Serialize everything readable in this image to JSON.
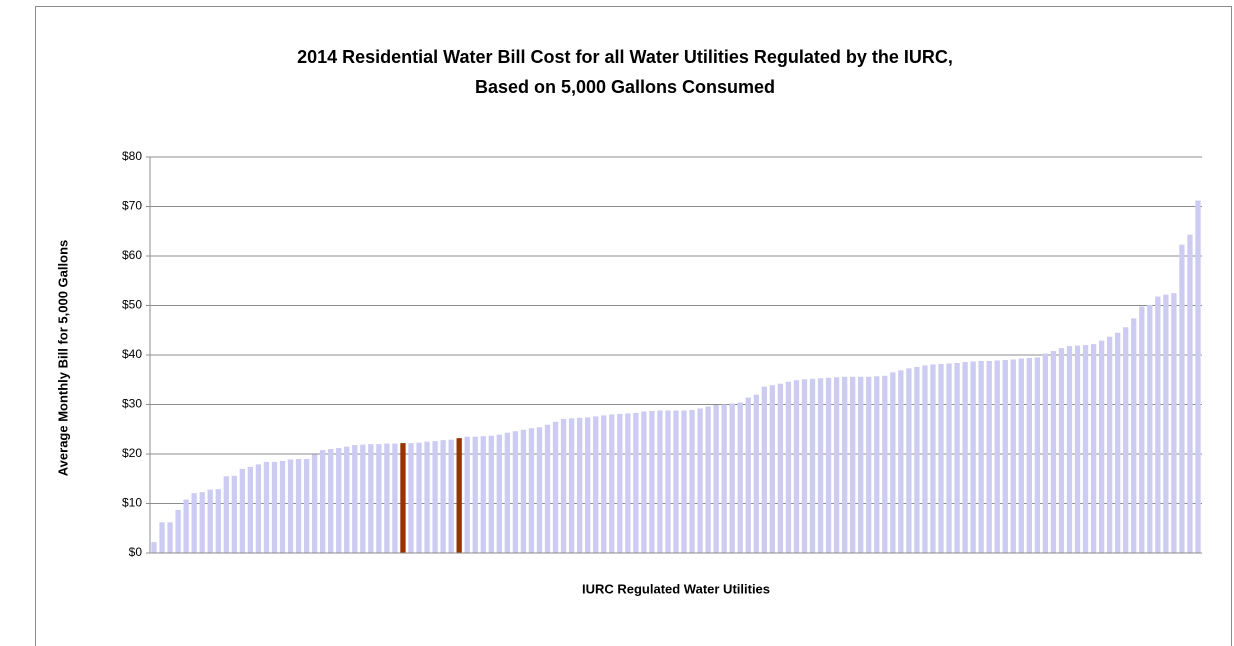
{
  "chart_data": {
    "type": "bar",
    "title": [
      "2014 Residential Water Bill Cost for all Water Utilities Regulated by the IURC,",
      "Based on 5,000 Gallons Consumed"
    ],
    "x_label": "IURC Regulated Water Utilities",
    "y_label": "Average Monthly Bill for 5,000 Gallons",
    "categories": [
      null,
      null,
      null,
      null,
      null,
      null,
      null,
      null,
      null,
      null,
      null,
      null,
      null,
      null,
      null,
      null,
      null,
      null,
      null,
      null,
      null,
      null,
      null,
      null,
      null,
      null,
      null,
      null,
      null,
      null,
      null,
      null,
      null,
      null,
      null,
      null,
      null,
      null,
      null,
      null,
      null,
      null,
      null,
      null,
      null,
      null,
      null,
      null,
      null,
      null,
      null,
      null,
      null,
      null,
      null,
      null,
      null,
      null,
      null,
      null,
      null,
      null,
      null,
      null,
      null,
      null,
      null,
      null,
      null,
      null,
      null,
      null,
      null,
      null,
      null,
      null,
      null,
      null,
      null,
      null,
      null,
      null,
      null,
      null,
      null,
      null,
      null,
      null,
      null,
      null,
      null,
      null,
      null,
      null,
      null,
      null,
      null,
      null,
      null,
      null,
      null,
      null,
      null,
      null,
      null,
      null,
      null,
      null,
      null,
      null,
      null,
      null,
      null,
      null,
      null,
      null,
      null,
      null,
      null,
      null,
      null,
      null,
      null,
      null,
      null,
      null,
      null,
      null,
      null,
      null,
      null
    ],
    "values": [
      2.2,
      6.2,
      6.2,
      8.7,
      10.8,
      12.1,
      12.3,
      12.8,
      12.9,
      15.5,
      15.6,
      17.0,
      17.4,
      17.9,
      18.4,
      18.4,
      18.6,
      18.9,
      19.0,
      19.0,
      19.9,
      20.8,
      21.0,
      21.2,
      21.5,
      21.8,
      21.9,
      22.0,
      22.0,
      22.1,
      22.1,
      22.2,
      22.2,
      22.3,
      22.5,
      22.6,
      22.8,
      22.9,
      23.2,
      23.5,
      23.5,
      23.6,
      23.7,
      23.9,
      24.3,
      24.6,
      24.9,
      25.2,
      25.4,
      25.9,
      26.5,
      27.1,
      27.2,
      27.3,
      27.4,
      27.6,
      27.8,
      28.0,
      28.1,
      28.2,
      28.3,
      28.6,
      28.7,
      28.8,
      28.8,
      28.8,
      28.8,
      28.9,
      29.2,
      29.6,
      29.9,
      30.0,
      30.2,
      30.4,
      31.4,
      32.0,
      33.6,
      33.9,
      34.2,
      34.6,
      34.9,
      35.1,
      35.2,
      35.3,
      35.4,
      35.5,
      35.6,
      35.6,
      35.6,
      35.6,
      35.7,
      35.8,
      36.5,
      36.9,
      37.3,
      37.6,
      37.9,
      38.1,
      38.2,
      38.3,
      38.4,
      38.6,
      38.7,
      38.8,
      38.8,
      38.9,
      39.0,
      39.1,
      39.3,
      39.4,
      39.5,
      40.3,
      40.8,
      41.4,
      41.8,
      41.9,
      42.0,
      42.2,
      42.9,
      43.7,
      44.5,
      45.6,
      47.4,
      49.8,
      50.1,
      51.8,
      52.2,
      52.5,
      62.3,
      64.3,
      71.2
    ],
    "colors": [
      "#ccccf2",
      "#ccccf2",
      "#ccccf2",
      "#ccccf2",
      "#ccccf2",
      "#ccccf2",
      "#ccccf2",
      "#ccccf2",
      "#ccccf2",
      "#ccccf2",
      "#ccccf2",
      "#ccccf2",
      "#ccccf2",
      "#ccccf2",
      "#ccccf2",
      "#ccccf2",
      "#ccccf2",
      "#ccccf2",
      "#ccccf2",
      "#ccccf2",
      "#ccccf2",
      "#ccccf2",
      "#ccccf2",
      "#ccccf2",
      "#ccccf2",
      "#ccccf2",
      "#ccccf2",
      "#ccccf2",
      "#ccccf2",
      "#ccccf2",
      "#ccccf2",
      "#993300",
      "#ccccf2",
      "#ccccf2",
      "#ccccf2",
      "#ccccf2",
      "#ccccf2",
      "#ccccf2",
      "#993300",
      "#ccccf2",
      "#ccccf2",
      "#ccccf2",
      "#ccccf2",
      "#ccccf2",
      "#ccccf2",
      "#ccccf2",
      "#ccccf2",
      "#ccccf2",
      "#ccccf2",
      "#ccccf2",
      "#ccccf2",
      "#ccccf2",
      "#ccccf2",
      "#ccccf2",
      "#ccccf2",
      "#ccccf2",
      "#ccccf2",
      "#ccccf2",
      "#ccccf2",
      "#ccccf2",
      "#ccccf2",
      "#ccccf2",
      "#ccccf2",
      "#ccccf2",
      "#ccccf2",
      "#ccccf2",
      "#ccccf2",
      "#ccccf2",
      "#ccccf2",
      "#ccccf2",
      "#ccccf2",
      "#ccccf2",
      "#ccccf2",
      "#ccccf2",
      "#ccccf2",
      "#ccccf2",
      "#ccccf2",
      "#ccccf2",
      "#ccccf2",
      "#ccccf2",
      "#ccccf2",
      "#ccccf2",
      "#ccccf2",
      "#ccccf2",
      "#ccccf2",
      "#ccccf2",
      "#ccccf2",
      "#ccccf2",
      "#ccccf2",
      "#ccccf2",
      "#ccccf2",
      "#ccccf2",
      "#ccccf2",
      "#ccccf2",
      "#ccccf2",
      "#ccccf2",
      "#ccccf2",
      "#ccccf2",
      "#ccccf2",
      "#ccccf2",
      "#ccccf2",
      "#ccccf2",
      "#ccccf2",
      "#ccccf2",
      "#ccccf2",
      "#ccccf2",
      "#ccccf2",
      "#ccccf2",
      "#ccccf2",
      "#ccccf2",
      "#ccccf2",
      "#ccccf2",
      "#ccccf2",
      "#ccccf2",
      "#ccccf2",
      "#ccccf2",
      "#ccccf2",
      "#ccccf2",
      "#ccccf2",
      "#ccccf2",
      "#ccccf2",
      "#ccccf2",
      "#ccccf2",
      "#ccccf2",
      "#ccccf2",
      "#ccccf2",
      "#ccccf2",
      "#ccccf2",
      "#ccccf2",
      "#ccccf2",
      "#ccccf2"
    ],
    "ylim": [
      0,
      80
    ],
    "yticks": [
      {
        "value": 0,
        "label": "$0"
      },
      {
        "value": 10,
        "label": "$10"
      },
      {
        "value": 20,
        "label": "$20"
      },
      {
        "value": 30,
        "label": "$30"
      },
      {
        "value": 40,
        "label": "$40"
      },
      {
        "value": 50,
        "label": "$50"
      },
      {
        "value": 60,
        "label": "$60"
      },
      {
        "value": 70,
        "label": "$70"
      },
      {
        "value": 80,
        "label": "$80"
      }
    ],
    "grid": true
  }
}
